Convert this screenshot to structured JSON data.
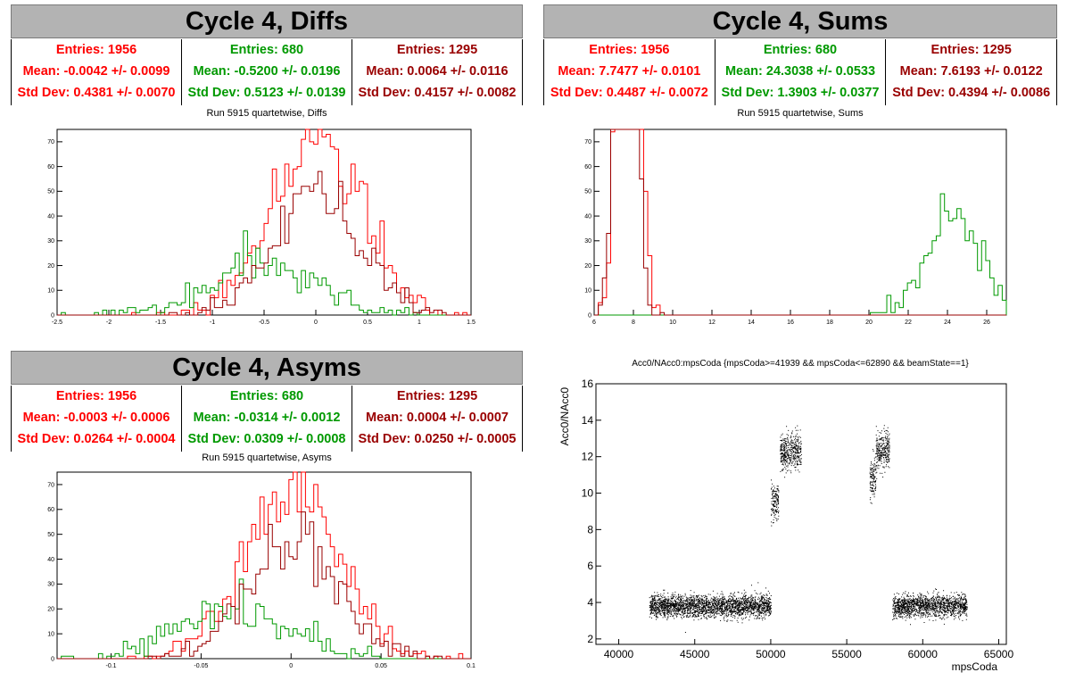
{
  "panels": [
    {
      "title": "Cycle 4, Diffs",
      "subtitle": "Run 5915 quartetwise, Diffs",
      "stats": [
        {
          "color": "#ff0000",
          "entries": "Entries: 1956",
          "mean": "Mean: -0.0042 +/- 0.0099",
          "std": "Std Dev: 0.4381 +/- 0.0070"
        },
        {
          "color": "#009900",
          "entries": "Entries: 680",
          "mean": "Mean: -0.5200 +/- 0.0196",
          "std": "Std Dev: 0.5123 +/- 0.0139"
        },
        {
          "color": "#990000",
          "entries": "Entries: 1295",
          "mean": "Mean: 0.0064 +/- 0.0116",
          "std": "Std Dev: 0.4157 +/- 0.0082"
        }
      ]
    },
    {
      "title": "Cycle 4, Sums",
      "subtitle": "Run 5915 quartetwise, Sums",
      "stats": [
        {
          "color": "#ff0000",
          "entries": "Entries: 1956",
          "mean": "Mean: 7.7477 +/- 0.0101",
          "std": "Std Dev: 0.4487 +/- 0.0072"
        },
        {
          "color": "#009900",
          "entries": "Entries: 680",
          "mean": "Mean: 24.3038 +/- 0.0533",
          "std": "Std Dev: 1.3903 +/- 0.0377"
        },
        {
          "color": "#990000",
          "entries": "Entries: 1295",
          "mean": "Mean: 7.6193 +/- 0.0122",
          "std": "Std Dev: 0.4394 +/- 0.0086"
        }
      ]
    },
    {
      "title": "Cycle 4, Asyms",
      "subtitle": "Run 5915 quartetwise, Asyms",
      "stats": [
        {
          "color": "#ff0000",
          "entries": "Entries: 1956",
          "mean": "Mean: -0.0003 +/- 0.0006",
          "std": "Std Dev: 0.0264 +/- 0.0004"
        },
        {
          "color": "#009900",
          "entries": "Entries: 680",
          "mean": "Mean: -0.0314 +/- 0.0012",
          "std": "Std Dev: 0.0309 +/- 0.0008"
        },
        {
          "color": "#990000",
          "entries": "Entries: 1295",
          "mean": "Mean: 0.0004 +/- 0.0007",
          "std": "Std Dev: 0.0250 +/- 0.0005"
        }
      ]
    }
  ],
  "scatter_title": "Acc0/NAcc0:mpsCoda {mpsCoda>=41939 && mpsCoda<=62890 && beamState==1}",
  "chart_data": [
    {
      "type": "histogram",
      "xlim": [
        -2.5,
        1.5
      ],
      "ylim": [
        0,
        75
      ],
      "xticks": [
        "-2.5",
        "-2",
        "-1.5",
        "-1",
        "-0.5",
        "0",
        "0.5",
        "1",
        "1.5"
      ],
      "yticks": [
        "0",
        "10",
        "20",
        "30",
        "40",
        "50",
        "60",
        "70"
      ],
      "series": [
        {
          "color": "#ff0000",
          "entries": 1956,
          "mean": -0.0042,
          "std": 0.4381
        },
        {
          "color": "#009900",
          "entries": 680,
          "mean": -0.52,
          "std": 0.5123
        },
        {
          "color": "#990000",
          "entries": 1295,
          "mean": 0.0064,
          "std": 0.4157
        }
      ]
    },
    {
      "type": "histogram",
      "xlim": [
        6,
        27
      ],
      "ylim": [
        0,
        75
      ],
      "xticks": [
        "6",
        "8",
        "10",
        "12",
        "14",
        "16",
        "18",
        "20",
        "22",
        "24",
        "26"
      ],
      "yticks": [
        "0",
        "10",
        "20",
        "30",
        "40",
        "50",
        "60",
        "70"
      ],
      "series": [
        {
          "color": "#ff0000",
          "entries": 1956,
          "mean": 7.7477,
          "std": 0.4487
        },
        {
          "color": "#009900",
          "entries": 680,
          "mean": 24.3038,
          "std": 1.3903
        },
        {
          "color": "#990000",
          "entries": 1295,
          "mean": 7.6193,
          "std": 0.4394
        }
      ]
    },
    {
      "type": "histogram",
      "xlim": [
        -0.13,
        0.1
      ],
      "ylim": [
        0,
        75
      ],
      "xticks": [
        "-0.1",
        "-0.05",
        "0",
        "0.05",
        "0.1"
      ],
      "yticks": [
        "0",
        "10",
        "20",
        "30",
        "40",
        "50",
        "60",
        "70"
      ],
      "series": [
        {
          "color": "#ff0000",
          "entries": 1956,
          "mean": -0.0003,
          "std": 0.0264
        },
        {
          "color": "#009900",
          "entries": 680,
          "mean": -0.0314,
          "std": 0.0309
        },
        {
          "color": "#990000",
          "entries": 1295,
          "mean": 0.0004,
          "std": 0.025
        }
      ]
    },
    {
      "type": "scatter",
      "xlabel": "mpsCoda",
      "ylabel": "Acc0/NAcc0",
      "xlim": [
        38500,
        65500
      ],
      "ylim": [
        1.7,
        16
      ],
      "xticks": [
        "40000",
        "45000",
        "50000",
        "55000",
        "60000",
        "65000"
      ],
      "yticks": [
        "2",
        "4",
        "6",
        "8",
        "10",
        "12",
        "14",
        "16"
      ],
      "clusters": [
        {
          "x": [
            42000,
            50000
          ],
          "y": 3.8,
          "spread": 0.3
        },
        {
          "x": [
            50000,
            50500
          ],
          "y": 9.5,
          "spread": 0.5
        },
        {
          "x": [
            50600,
            52000
          ],
          "y": 12.3,
          "spread": 0.5
        },
        {
          "x": [
            56500,
            56900
          ],
          "y": 10.8,
          "spread": 0.5
        },
        {
          "x": [
            56900,
            57800
          ],
          "y": 12.3,
          "spread": 0.5
        },
        {
          "x": [
            58000,
            62900
          ],
          "y": 3.8,
          "spread": 0.3
        }
      ]
    }
  ]
}
